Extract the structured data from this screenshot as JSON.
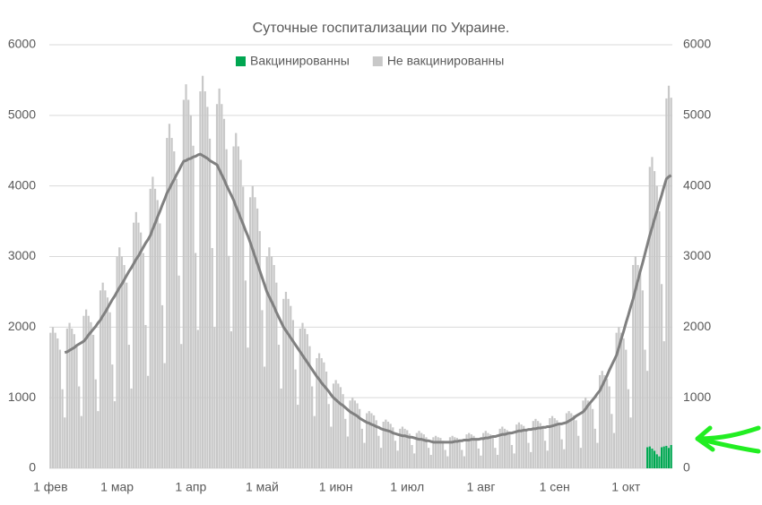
{
  "chart_data": {
    "type": "bar",
    "stacked": true,
    "title": "Суточные госпитализации по Украине.",
    "categories": [
      "1 фев",
      null,
      null,
      null,
      null,
      null,
      null,
      null,
      null,
      null,
      null,
      null,
      null,
      null,
      null,
      null,
      null,
      null,
      null,
      null,
      null,
      null,
      null,
      null,
      null,
      null,
      null,
      null,
      "1 мар",
      null,
      null,
      null,
      null,
      null,
      null,
      null,
      null,
      null,
      null,
      null,
      null,
      null,
      null,
      null,
      null,
      null,
      null,
      null,
      null,
      null,
      null,
      null,
      null,
      null,
      null,
      null,
      null,
      null,
      null,
      "1 апр",
      null,
      null,
      null,
      null,
      null,
      null,
      null,
      null,
      null,
      null,
      null,
      null,
      null,
      null,
      null,
      null,
      null,
      null,
      null,
      null,
      null,
      null,
      null,
      null,
      null,
      null,
      null,
      null,
      null,
      "1 май",
      null,
      null,
      null,
      null,
      null,
      null,
      null,
      null,
      null,
      null,
      null,
      null,
      null,
      null,
      null,
      null,
      null,
      null,
      null,
      null,
      null,
      null,
      null,
      null,
      null,
      null,
      null,
      null,
      null,
      null,
      "1 июн",
      null,
      null,
      null,
      null,
      null,
      null,
      null,
      null,
      null,
      null,
      null,
      null,
      null,
      null,
      null,
      null,
      null,
      null,
      null,
      null,
      null,
      null,
      null,
      null,
      null,
      null,
      null,
      null,
      null,
      "1 июл",
      null,
      null,
      null,
      null,
      null,
      null,
      null,
      null,
      null,
      null,
      null,
      null,
      null,
      null,
      null,
      null,
      null,
      null,
      null,
      null,
      null,
      null,
      null,
      null,
      null,
      null,
      null,
      null,
      null,
      null,
      "1 авг",
      null,
      null,
      null,
      null,
      null,
      null,
      null,
      null,
      null,
      null,
      null,
      null,
      null,
      null,
      null,
      null,
      null,
      null,
      null,
      null,
      null,
      null,
      null,
      null,
      null,
      null,
      null,
      null,
      null,
      null,
      "1 сен",
      null,
      null,
      null,
      null,
      null,
      null,
      null,
      null,
      null,
      null,
      null,
      null,
      null,
      null,
      null,
      null,
      null,
      null,
      null,
      null,
      null,
      null,
      null,
      null,
      null,
      null,
      null,
      null,
      null,
      "1 окт",
      null,
      null,
      null,
      null,
      null,
      null,
      null,
      null,
      null,
      null,
      null,
      null,
      null,
      null,
      null,
      null,
      null,
      null,
      null
    ],
    "series": [
      {
        "name": "Вакцинированны",
        "type": "bar",
        "color": "#00a651",
        "values": [
          null,
          null,
          null,
          null,
          null,
          null,
          null,
          null,
          null,
          null,
          null,
          null,
          null,
          null,
          null,
          null,
          null,
          null,
          null,
          null,
          null,
          null,
          null,
          null,
          null,
          null,
          null,
          null,
          null,
          null,
          null,
          null,
          null,
          null,
          null,
          null,
          null,
          null,
          null,
          null,
          null,
          null,
          null,
          null,
          null,
          null,
          null,
          null,
          null,
          null,
          null,
          null,
          null,
          null,
          null,
          null,
          null,
          null,
          null,
          null,
          null,
          null,
          null,
          null,
          null,
          null,
          null,
          null,
          null,
          null,
          null,
          null,
          null,
          null,
          null,
          null,
          null,
          null,
          null,
          null,
          null,
          null,
          null,
          null,
          null,
          null,
          null,
          null,
          null,
          null,
          null,
          null,
          null,
          null,
          null,
          null,
          null,
          null,
          null,
          null,
          null,
          null,
          null,
          null,
          null,
          null,
          null,
          null,
          null,
          null,
          null,
          null,
          null,
          null,
          null,
          null,
          null,
          null,
          null,
          null,
          null,
          null,
          null,
          null,
          null,
          null,
          null,
          null,
          null,
          null,
          null,
          null,
          null,
          null,
          null,
          null,
          null,
          null,
          null,
          null,
          null,
          null,
          null,
          null,
          null,
          null,
          null,
          null,
          null,
          null,
          null,
          null,
          null,
          null,
          null,
          null,
          null,
          null,
          null,
          null,
          null,
          null,
          null,
          null,
          null,
          null,
          null,
          null,
          null,
          null,
          null,
          null,
          null,
          null,
          null,
          null,
          null,
          null,
          null,
          null,
          null,
          null,
          null,
          null,
          null,
          null,
          null,
          null,
          null,
          null,
          null,
          null,
          null,
          null,
          null,
          null,
          null,
          null,
          null,
          null,
          null,
          null,
          null,
          null,
          null,
          null,
          null,
          null,
          null,
          null,
          null,
          null,
          null,
          null,
          null,
          null,
          null,
          null,
          null,
          null,
          null,
          null,
          null,
          null,
          null,
          null,
          null,
          null,
          null,
          null,
          null,
          null,
          null,
          null,
          null,
          null,
          null,
          null,
          null,
          null,
          null,
          null,
          null,
          null,
          null,
          null,
          null,
          null,
          null,
          null,
          null,
          300,
          310,
          280,
          250,
          200,
          170,
          300,
          310,
          320,
          290,
          330
        ]
      },
      {
        "name": "Не вакцинированны",
        "type": "bar",
        "color": "#c8c8c8",
        "values": [
          1920,
          2000,
          1920,
          1840,
          1680,
          1120,
          720,
          1980,
          2060,
          1980,
          1900,
          1730,
          1160,
          740,
          2160,
          2250,
          2160,
          2070,
          1890,
          1260,
          810,
          2520,
          2630,
          2520,
          2420,
          2210,
          1470,
          950,
          3000,
          3130,
          3000,
          2880,
          2630,
          1750,
          1130,
          3480,
          3630,
          3480,
          3340,
          3050,
          2030,
          1310,
          3960,
          4130,
          3960,
          3800,
          3470,
          2310,
          1490,
          4680,
          4880,
          4680,
          4490,
          4100,
          2730,
          1760,
          5220,
          5440,
          5220,
          5000,
          4570,
          3050,
          1960,
          5340,
          5560,
          5340,
          5120,
          4670,
          3120,
          2000,
          5160,
          5380,
          5160,
          4950,
          4520,
          3010,
          1940,
          4560,
          4750,
          4560,
          4370,
          3990,
          2660,
          1710,
          3840,
          4000,
          3840,
          3680,
          3360,
          2240,
          1440,
          3000,
          3130,
          3000,
          2880,
          2630,
          1750,
          1130,
          2400,
          2500,
          2400,
          2300,
          2100,
          1400,
          900,
          1980,
          2060,
          1980,
          1900,
          1730,
          1160,
          740,
          1560,
          1630,
          1560,
          1500,
          1370,
          910,
          590,
          1200,
          1250,
          1200,
          1150,
          1050,
          700,
          450,
          960,
          1000,
          960,
          920,
          840,
          560,
          360,
          780,
          810,
          780,
          750,
          680,
          460,
          290,
          660,
          690,
          660,
          630,
          580,
          390,
          250,
          560,
          590,
          560,
          540,
          490,
          330,
          210,
          500,
          530,
          500,
          480,
          440,
          290,
          190,
          440,
          460,
          440,
          430,
          390,
          260,
          170,
          440,
          460,
          440,
          430,
          390,
          260,
          170,
          480,
          500,
          480,
          460,
          420,
          280,
          180,
          500,
          530,
          500,
          480,
          440,
          290,
          190,
          560,
          590,
          560,
          540,
          490,
          330,
          210,
          620,
          650,
          620,
          600,
          550,
          360,
          230,
          670,
          700,
          670,
          640,
          590,
          390,
          250,
          710,
          740,
          710,
          680,
          620,
          410,
          270,
          780,
          810,
          780,
          750,
          680,
          460,
          290,
          960,
          1000,
          960,
          920,
          840,
          560,
          360,
          1320,
          1380,
          1320,
          1270,
          1160,
          770,
          500,
          1920,
          2000,
          1920,
          1840,
          1680,
          1120,
          720,
          2880,
          3000,
          2880,
          2760,
          2520,
          1680,
          1080,
          3960,
          4130,
          3960,
          3800,
          3470,
          2310,
          1490,
          4920,
          5130,
          4920
        ]
      },
      {
        "type": "line",
        "color": "#808080",
        "values": [
          null,
          null,
          null,
          null,
          null,
          null,
          1640,
          1650,
          1670,
          1690,
          1710,
          1740,
          1760,
          1780,
          1800,
          1840,
          1890,
          1930,
          1970,
          2010,
          2060,
          2100,
          2160,
          2210,
          2270,
          2330,
          2390,
          2440,
          2500,
          2560,
          2610,
          2670,
          2730,
          2790,
          2840,
          2900,
          2960,
          3010,
          3070,
          3130,
          3190,
          3240,
          3300,
          3390,
          3470,
          3560,
          3640,
          3730,
          3810,
          3900,
          3960,
          4030,
          4090,
          4160,
          4220,
          4290,
          4350,
          4360,
          4380,
          4390,
          4410,
          4420,
          4440,
          4450,
          4430,
          4410,
          4390,
          4360,
          4340,
          4320,
          4300,
          4230,
          4160,
          4090,
          4010,
          3940,
          3870,
          3800,
          3710,
          3630,
          3540,
          3460,
          3370,
          3290,
          3200,
          3100,
          3000,
          2900,
          2800,
          2700,
          2600,
          2500,
          2430,
          2360,
          2290,
          2210,
          2140,
          2070,
          2000,
          1950,
          1900,
          1850,
          1800,
          1750,
          1700,
          1650,
          1600,
          1550,
          1500,
          1450,
          1400,
          1350,
          1300,
          1260,
          1210,
          1170,
          1130,
          1090,
          1040,
          1000,
          970,
          940,
          910,
          890,
          860,
          830,
          800,
          780,
          760,
          740,
          710,
          690,
          670,
          650,
          640,
          620,
          610,
          590,
          580,
          560,
          550,
          540,
          530,
          520,
          500,
          490,
          480,
          470,
          460,
          460,
          450,
          440,
          440,
          430,
          420,
          410,
          410,
          400,
          390,
          390,
          380,
          370,
          370,
          370,
          370,
          370,
          370,
          370,
          370,
          370,
          380,
          380,
          390,
          390,
          400,
          400,
          400,
          410,
          410,
          410,
          410,
          420,
          420,
          430,
          430,
          440,
          450,
          450,
          460,
          470,
          480,
          480,
          490,
          500,
          500,
          510,
          520,
          530,
          530,
          540,
          540,
          550,
          550,
          560,
          560,
          570,
          570,
          580,
          580,
          590,
          590,
          600,
          610,
          620,
          630,
          630,
          640,
          650,
          670,
          690,
          710,
          740,
          760,
          780,
          800,
          840,
          890,
          930,
          970,
          1010,
          1060,
          1100,
          1170,
          1240,
          1310,
          1390,
          1460,
          1530,
          1600,
          1710,
          1830,
          1940,
          2060,
          2170,
          2290,
          2400,
          2530,
          2660,
          2790,
          2910,
          3040,
          3170,
          3300,
          3410,
          3530,
          3640,
          3760,
          3870,
          3990,
          4100,
          4130,
          4150
        ]
      }
    ],
    "ylim": [
      0,
      6000
    ],
    "yticks": [
      0,
      1000,
      2000,
      3000,
      4000,
      5000,
      6000
    ],
    "y2lim": [
      0,
      6000
    ],
    "y2ticks": [
      0,
      1000,
      2000,
      3000,
      4000,
      5000,
      6000
    ],
    "grid": true,
    "legend": "top"
  }
}
